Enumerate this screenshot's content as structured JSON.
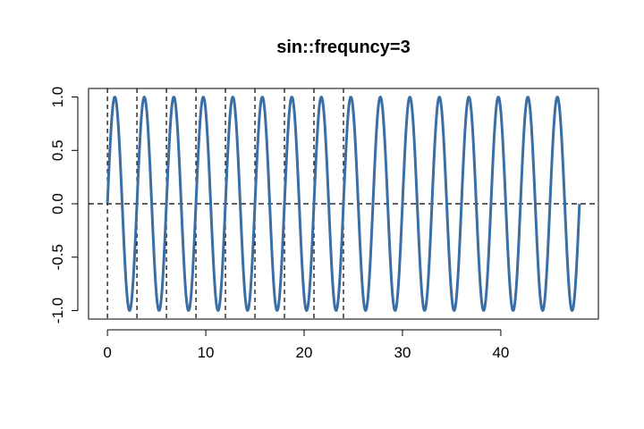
{
  "chart_data": {
    "type": "line",
    "title": "sin::frequncy=3",
    "xlabel": "",
    "ylabel": "",
    "xlim": [
      -1.92,
      49.92
    ],
    "ylim": [
      -1.08,
      1.08
    ],
    "x_ticks": [
      0,
      10,
      20,
      30,
      40
    ],
    "y_ticks": [
      -1.0,
      -0.5,
      0.0,
      0.5,
      1.0
    ],
    "y_tick_labels": [
      "-1.0",
      "-0.5",
      "0.0",
      "0.5",
      "1.0"
    ],
    "grid": false,
    "series": [
      {
        "color": "#3a6ea5",
        "function": "sin",
        "period": 3,
        "x_range": [
          0,
          48
        ],
        "amplitude": 1
      }
    ],
    "reference_lines": {
      "horizontal": [
        0
      ],
      "vertical": [
        0,
        3,
        6,
        9,
        12,
        15,
        18,
        21,
        24
      ],
      "color": "#000000",
      "style": "dashed"
    }
  }
}
